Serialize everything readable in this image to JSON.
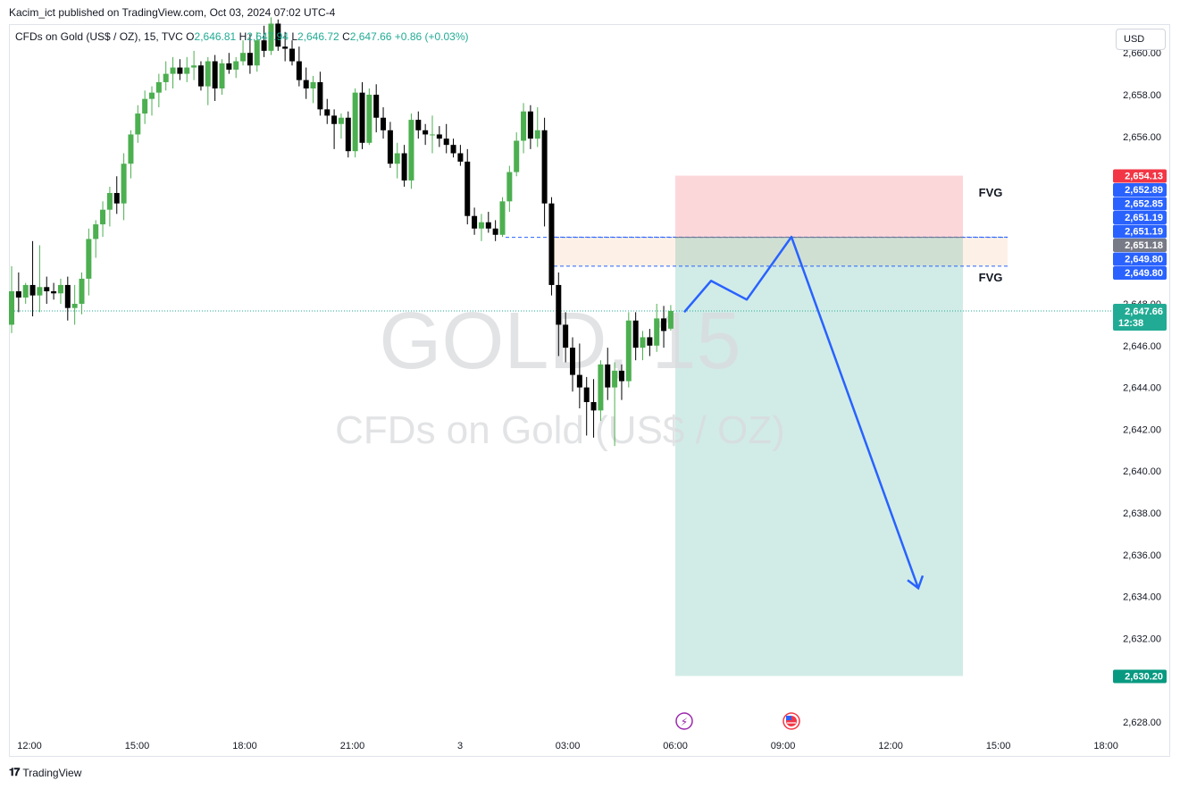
{
  "publisher": "Kacim_ict published on TradingView.com, Oct 03, 2024 07:02 UTC-4",
  "legend": {
    "symbol": "CFDs on Gold (US$ / OZ), 15, TVC",
    "open_label": "O",
    "open": "2,646.81",
    "high_label": "H",
    "high": "2,647.94",
    "low_label": "L",
    "low": "2,646.72",
    "close_label": "C",
    "close": "2,647.66",
    "change": "+0.86 (+0.03%)"
  },
  "currency_button": "USD",
  "watermark": {
    "ticker": "GOLD, 15",
    "name": "CFDs on Gold (US$ / OZ)"
  },
  "footer": {
    "brand": "TradingView"
  },
  "colors": {
    "up": "#4caf50",
    "down": "#000000",
    "stop": "#f23645",
    "entry": "#787b86",
    "target": "#089981",
    "level": "#2962ff",
    "last": "#22ab94"
  },
  "chart_data": {
    "type": "candlestick",
    "timeframe": "15",
    "x_tick_labels": [
      "12:00",
      "15:00",
      "18:00",
      "21:00",
      "3",
      "03:00",
      "06:00",
      "09:00",
      "12:00",
      "15:00",
      "18:00"
    ],
    "y_tick_labels": [
      "2,628.00",
      "2,632.00",
      "2,634.00",
      "2,636.00",
      "2,638.00",
      "2,640.00",
      "2,642.00",
      "2,644.00",
      "2,646.00",
      "2,648.00",
      "2,656.00",
      "2,658.00",
      "2,660.00"
    ],
    "ylim": [
      2627.5,
      2660.5
    ],
    "candles": [
      [
        2647.0,
        2649.8,
        2646.6,
        2648.6
      ],
      [
        2648.6,
        2649.5,
        2647.6,
        2648.3
      ],
      [
        2648.3,
        2649.0,
        2648.0,
        2648.9
      ],
      [
        2648.9,
        2651.0,
        2647.4,
        2648.4
      ],
      [
        2648.4,
        2650.8,
        2647.6,
        2648.8
      ],
      [
        2648.8,
        2649.3,
        2648.0,
        2648.6
      ],
      [
        2648.6,
        2649.0,
        2648.2,
        2648.5
      ],
      [
        2648.5,
        2649.2,
        2648.0,
        2648.9
      ],
      [
        2648.9,
        2649.3,
        2647.2,
        2647.8
      ],
      [
        2647.8,
        2648.9,
        2647.0,
        2648.0
      ],
      [
        2648.0,
        2649.5,
        2647.5,
        2649.2
      ],
      [
        2649.2,
        2651.6,
        2648.4,
        2651.1
      ],
      [
        2651.1,
        2652.0,
        2650.2,
        2651.8
      ],
      [
        2651.8,
        2652.9,
        2651.2,
        2652.5
      ],
      [
        2652.5,
        2653.6,
        2651.7,
        2653.3
      ],
      [
        2653.3,
        2654.1,
        2652.3,
        2652.8
      ],
      [
        2652.8,
        2655.2,
        2652.0,
        2654.7
      ],
      [
        2654.7,
        2656.3,
        2654.0,
        2656.1
      ],
      [
        2656.1,
        2657.5,
        2655.7,
        2657.1
      ],
      [
        2657.1,
        2658.2,
        2656.6,
        2657.8
      ],
      [
        2657.8,
        2658.4,
        2657.0,
        2658.1
      ],
      [
        2658.1,
        2659.0,
        2657.4,
        2658.6
      ],
      [
        2658.6,
        2659.6,
        2658.2,
        2659.0
      ],
      [
        2659.0,
        2659.8,
        2658.3,
        2659.3
      ],
      [
        2659.3,
        2659.7,
        2658.7,
        2659.0
      ],
      [
        2659.0,
        2659.8,
        2658.6,
        2659.3
      ],
      [
        2659.3,
        2660.1,
        2658.7,
        2659.4
      ],
      [
        2659.4,
        2659.6,
        2658.2,
        2658.4
      ],
      [
        2658.4,
        2659.8,
        2657.5,
        2659.6
      ],
      [
        2659.6,
        2659.9,
        2657.7,
        2658.3
      ],
      [
        2658.3,
        2659.7,
        2658.0,
        2659.5
      ],
      [
        2659.5,
        2660.0,
        2659.0,
        2659.2
      ],
      [
        2659.2,
        2659.8,
        2658.8,
        2659.6
      ],
      [
        2659.6,
        2660.6,
        2659.4,
        2660.0
      ],
      [
        2660.0,
        2660.9,
        2659.0,
        2659.4
      ],
      [
        2659.4,
        2661.0,
        2659.1,
        2660.6
      ],
      [
        2660.6,
        2661.3,
        2659.8,
        2660.1
      ],
      [
        2660.1,
        2661.7,
        2659.9,
        2661.4
      ],
      [
        2661.4,
        2661.6,
        2660.1,
        2660.3
      ],
      [
        2660.3,
        2661.0,
        2659.6,
        2660.2
      ],
      [
        2660.2,
        2660.6,
        2659.4,
        2659.6
      ],
      [
        2659.6,
        2660.3,
        2658.4,
        2658.7
      ],
      [
        2658.7,
        2659.3,
        2657.8,
        2658.3
      ],
      [
        2658.3,
        2658.9,
        2657.6,
        2658.6
      ],
      [
        2658.6,
        2659.1,
        2657.0,
        2657.3
      ],
      [
        2657.3,
        2657.8,
        2656.6,
        2657.0
      ],
      [
        2657.0,
        2657.3,
        2655.4,
        2656.6
      ],
      [
        2656.6,
        2657.1,
        2655.9,
        2656.9
      ],
      [
        2656.9,
        2657.2,
        2655.0,
        2655.3
      ],
      [
        2655.3,
        2658.3,
        2655.0,
        2658.1
      ],
      [
        2658.1,
        2658.6,
        2655.4,
        2655.7
      ],
      [
        2655.7,
        2658.3,
        2655.6,
        2658.0
      ],
      [
        2658.0,
        2658.5,
        2656.2,
        2656.9
      ],
      [
        2656.9,
        2657.4,
        2655.9,
        2656.3
      ],
      [
        2656.3,
        2656.7,
        2654.5,
        2654.7
      ],
      [
        2654.7,
        2655.7,
        2654.0,
        2655.2
      ],
      [
        2655.2,
        2655.6,
        2653.6,
        2653.9
      ],
      [
        2653.9,
        2657.1,
        2653.5,
        2656.8
      ],
      [
        2656.8,
        2657.2,
        2655.9,
        2656.3
      ],
      [
        2656.3,
        2656.6,
        2655.6,
        2656.1
      ],
      [
        2656.1,
        2657.0,
        2655.2,
        2656.1
      ],
      [
        2656.1,
        2656.5,
        2655.5,
        2655.9
      ],
      [
        2655.9,
        2656.6,
        2655.2,
        2655.6
      ],
      [
        2655.6,
        2655.9,
        2655.0,
        2655.2
      ],
      [
        2655.2,
        2655.6,
        2654.6,
        2654.8
      ],
      [
        2654.8,
        2655.4,
        2651.8,
        2652.2
      ],
      [
        2652.2,
        2652.6,
        2651.3,
        2651.6
      ],
      [
        2651.6,
        2652.3,
        2651.0,
        2651.9
      ],
      [
        2651.9,
        2652.4,
        2651.4,
        2651.6
      ],
      [
        2651.6,
        2652.0,
        2651.0,
        2651.3
      ],
      [
        2651.3,
        2653.1,
        2651.2,
        2652.9
      ],
      [
        2652.9,
        2654.6,
        2652.4,
        2654.3
      ],
      [
        2654.3,
        2656.2,
        2654.1,
        2655.8
      ],
      [
        2655.8,
        2657.6,
        2655.2,
        2657.2
      ],
      [
        2657.2,
        2657.5,
        2655.4,
        2655.9
      ],
      [
        2655.9,
        2657.4,
        2655.5,
        2656.3
      ],
      [
        2656.3,
        2656.9,
        2651.7,
        2652.8
      ],
      [
        2652.8,
        2653.1,
        2648.4,
        2648.9
      ],
      [
        2648.9,
        2649.5,
        2645.5,
        2647.0
      ],
      [
        2647.0,
        2647.6,
        2645.2,
        2645.9
      ],
      [
        2645.9,
        2646.4,
        2643.8,
        2644.6
      ],
      [
        2644.6,
        2646.1,
        2643.0,
        2644.0
      ],
      [
        2644.0,
        2644.5,
        2641.7,
        2643.3
      ],
      [
        2643.3,
        2644.4,
        2641.6,
        2642.9
      ],
      [
        2642.9,
        2645.3,
        2642.4,
        2645.1
      ],
      [
        2645.1,
        2645.9,
        2643.4,
        2644.0
      ],
      [
        2644.0,
        2645.2,
        2641.2,
        2644.8
      ],
      [
        2644.8,
        2645.1,
        2643.4,
        2644.3
      ],
      [
        2644.3,
        2647.6,
        2644.0,
        2647.2
      ],
      [
        2647.2,
        2647.6,
        2645.3,
        2645.9
      ],
      [
        2645.9,
        2646.7,
        2645.3,
        2646.4
      ],
      [
        2646.4,
        2646.8,
        2645.5,
        2646.0
      ],
      [
        2646.0,
        2648.0,
        2645.7,
        2647.3
      ],
      [
        2647.3,
        2647.9,
        2645.9,
        2646.7
      ],
      [
        2646.81,
        2647.94,
        2646.72,
        2647.66
      ]
    ],
    "price_tags": [
      {
        "value": "2,654.13",
        "price": 2654.13,
        "color": "#f23645"
      },
      {
        "value": "2,652.89",
        "price": 2652.89,
        "color": "#2962ff"
      },
      {
        "value": "2,652.85",
        "price": 2652.85,
        "color": "#2962ff"
      },
      {
        "value": "2,651.19",
        "price": 2651.19,
        "color": "#2962ff"
      },
      {
        "value": "2,651.19",
        "price": 2651.19,
        "color": "#2962ff"
      },
      {
        "value": "2,651.18",
        "price": 2651.18,
        "color": "#787b86"
      },
      {
        "value": "2,649.80",
        "price": 2649.8,
        "color": "#2962ff"
      },
      {
        "value": "2,649.80",
        "price": 2649.8,
        "color": "#2962ff"
      }
    ],
    "last_price": {
      "value": "2,647.66",
      "countdown": "12:38",
      "price": 2647.66
    },
    "target_tag": {
      "value": "2,630.20",
      "price": 2630.2
    },
    "position": {
      "side": "short",
      "entry": 2651.18,
      "stop": 2654.13,
      "target": 2630.2
    },
    "fvg_zone": {
      "top": 2651.19,
      "mid": 2651.18,
      "bottom": 2649.8
    },
    "annotations": [
      "FVG",
      "FVG"
    ],
    "projection_path": [
      2647.6,
      2649.1,
      2648.2,
      2651.2,
      2634.4
    ]
  }
}
